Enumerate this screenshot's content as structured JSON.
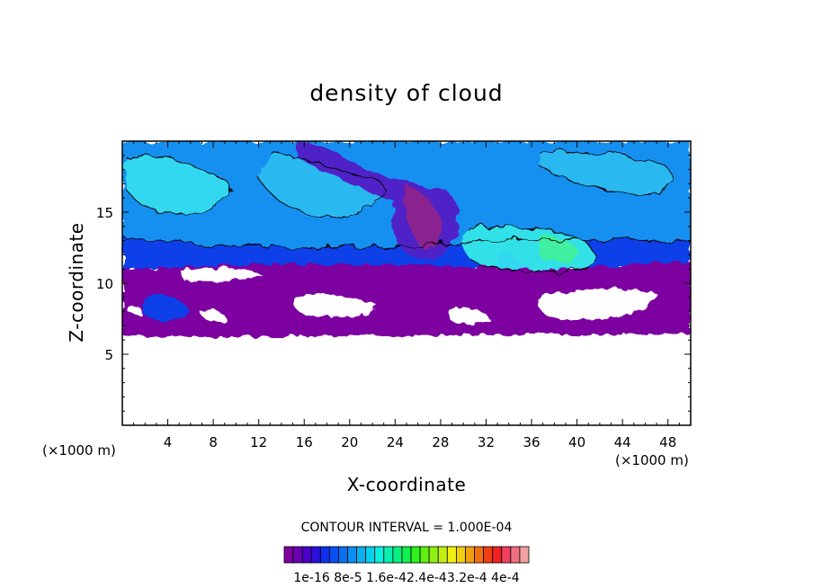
{
  "chart_data": {
    "type": "heatmap",
    "title": "density of cloud",
    "xlabel": "X-coordinate",
    "ylabel": "Z-coordinate",
    "x_unit": "(×1000 m)",
    "z_unit": "(×1000 m)",
    "xlim": [
      0,
      50
    ],
    "ylim": [
      0,
      20
    ],
    "x_ticks": [
      4,
      8,
      12,
      16,
      20,
      24,
      28,
      32,
      36,
      40,
      44,
      48
    ],
    "y_ticks": [
      5,
      10,
      15
    ],
    "contour_interval_label": "CONTOUR INTERVAL = 1.000E-04",
    "colorbar_labels": [
      "1e-16",
      "8e-5",
      "1.6e-4",
      "2.4e-4",
      "3.2e-4",
      "4e-4"
    ],
    "colorbar_label_string": "1e-16 8e-5 1.6e-42.4e-43.2e-4 4e-4",
    "colorbar_colors": [
      "#7d00a0",
      "#6a00b4",
      "#4a00c8",
      "#2a10dc",
      "#1030f0",
      "#0a50f0",
      "#0a70f0",
      "#0a90f0",
      "#0ab0f0",
      "#0ad0f0",
      "#0af0e0",
      "#0af0b0",
      "#0af080",
      "#10f050",
      "#30f020",
      "#60f010",
      "#90f010",
      "#c0f010",
      "#f0f010",
      "#f0d010",
      "#f0a010",
      "#f07010",
      "#f04010",
      "#f02020",
      "#f04060",
      "#f07080",
      "#f0a0a0"
    ],
    "cloud_base_km": 6.2,
    "dense_core_x_km": [
      22,
      31
    ],
    "max_region_x_km": [
      33,
      41
    ]
  }
}
